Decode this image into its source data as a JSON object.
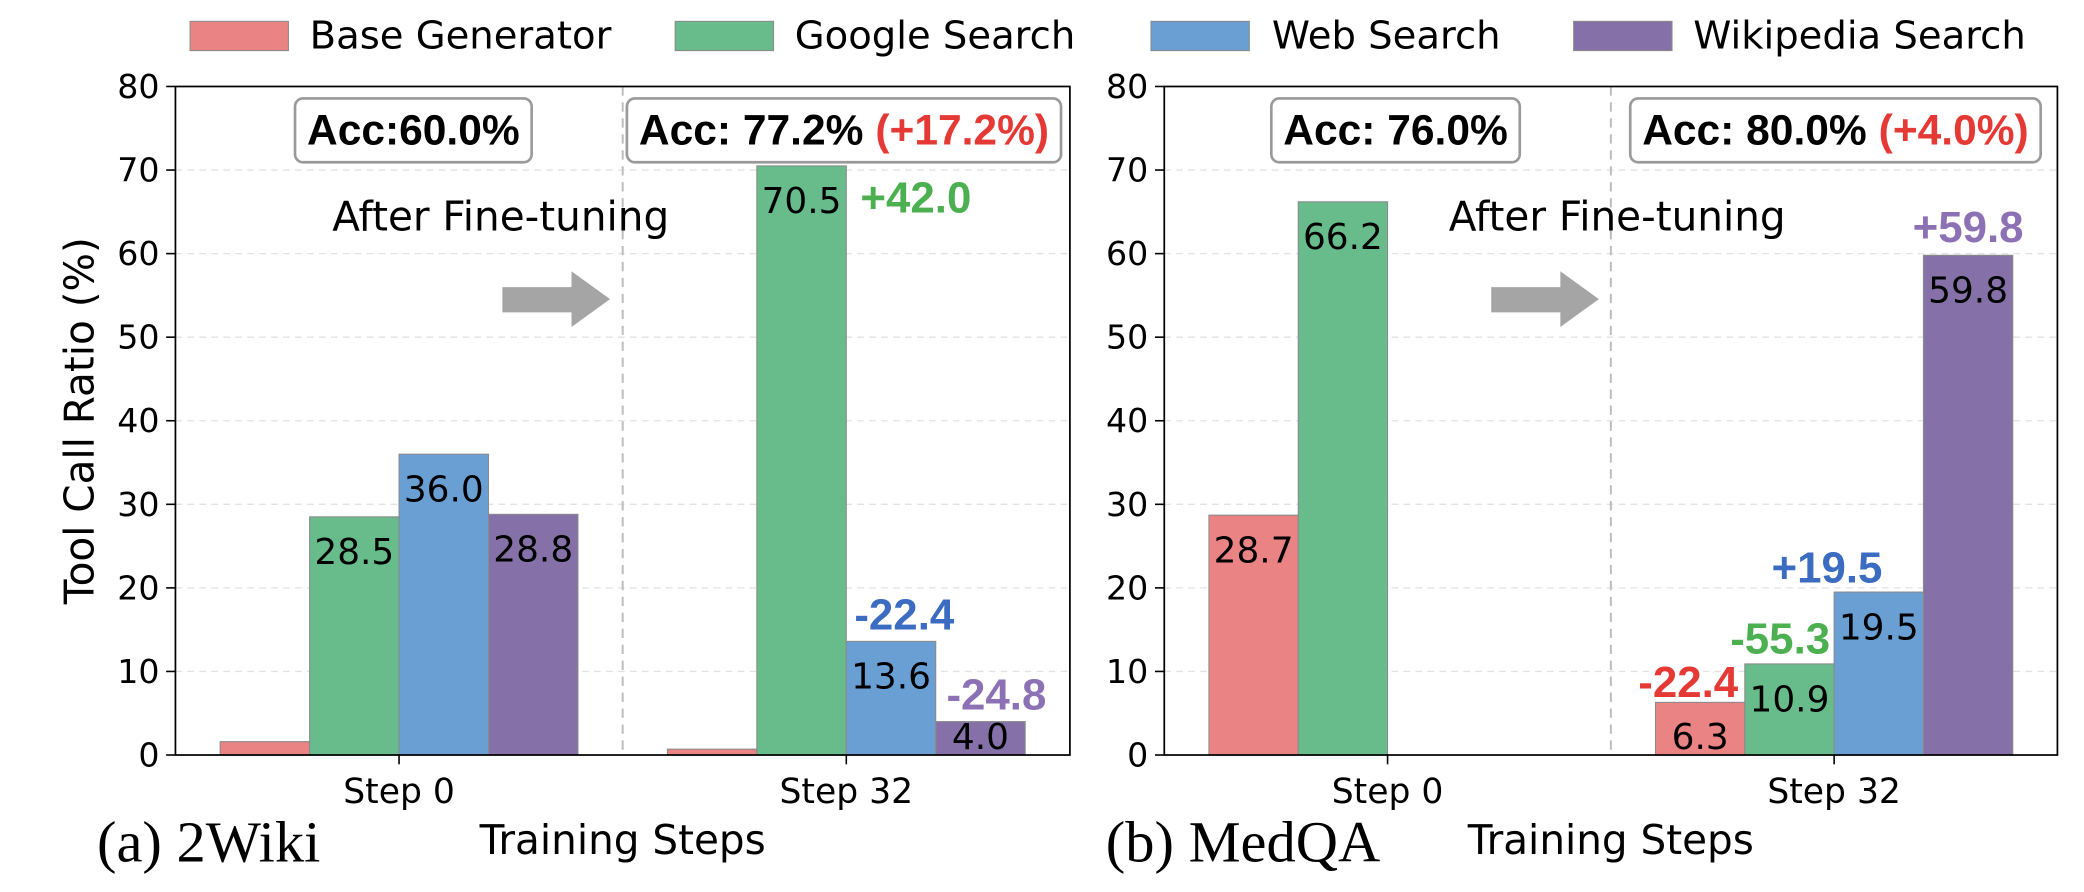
{
  "chart_data": [
    {
      "type": "bar",
      "panel_label": "(a) 2Wiki",
      "xlabel": "Training Steps",
      "ylabel": "Tool Call Ratio (%)",
      "ylim": [
        0,
        80
      ],
      "yticks": [
        0,
        10,
        20,
        30,
        40,
        50,
        60,
        70,
        80
      ],
      "categories": [
        "Step 0",
        "Step 32"
      ],
      "grid": "horizontal dashed",
      "legend": "top",
      "series": [
        {
          "name": "Base Generator",
          "color": "#EA8383",
          "values": [
            1.6,
            0.7
          ],
          "value_labels": [
            null,
            null
          ],
          "change_label": null
        },
        {
          "name": "Google Search",
          "color": "#68BB8A",
          "values": [
            28.5,
            70.5
          ],
          "value_labels": [
            "28.5",
            "70.5"
          ],
          "change_label": "+42.0",
          "change_color": "#4CAF50"
        },
        {
          "name": "Web Search",
          "color": "#6A9FD4",
          "values": [
            36.0,
            13.6
          ],
          "value_labels": [
            "36.0",
            "13.6"
          ],
          "change_label": "-22.4",
          "change_color": "#3B6CC1"
        },
        {
          "name": "Wikipedia Search",
          "color": "#8571A8",
          "values": [
            28.8,
            4.0
          ],
          "value_labels": [
            "28.8",
            "4.0"
          ],
          "change_label": "-24.8",
          "change_color": "#8D71B5"
        }
      ],
      "accuracy": [
        {
          "text": "Acc:60.0%",
          "delta": null
        },
        {
          "text": "Acc: 77.2%",
          "delta": "(+17.2%)",
          "delta_color": "#E53935"
        }
      ],
      "annotation": "After Fine-tuning"
    },
    {
      "type": "bar",
      "panel_label": "(b) MedQA",
      "xlabel": "Training Steps",
      "ylabel": "",
      "ylim": [
        0,
        80
      ],
      "yticks": [
        0,
        10,
        20,
        30,
        40,
        50,
        60,
        70,
        80
      ],
      "categories": [
        "Step 0",
        "Step 32"
      ],
      "grid": "horizontal dashed",
      "legend": "top",
      "series": [
        {
          "name": "Base Generator",
          "color": "#EA8383",
          "values": [
            28.7,
            6.3
          ],
          "value_labels": [
            "28.7",
            "6.3"
          ],
          "change_label": "-22.4",
          "change_color": "#E53935"
        },
        {
          "name": "Google Search",
          "color": "#68BB8A",
          "values": [
            66.2,
            10.9
          ],
          "value_labels": [
            "66.2",
            "10.9"
          ],
          "change_label": "-55.3",
          "change_color": "#4CAF50"
        },
        {
          "name": "Web Search",
          "color": "#6A9FD4",
          "values": [
            0,
            19.5
          ],
          "value_labels": [
            null,
            "19.5"
          ],
          "change_label": "+19.5",
          "change_color": "#3B6CC1"
        },
        {
          "name": "Wikipedia Search",
          "color": "#8571A8",
          "values": [
            0,
            59.8
          ],
          "value_labels": [
            null,
            "59.8"
          ],
          "change_label": "+59.8",
          "change_color": "#8D71B5"
        }
      ],
      "accuracy": [
        {
          "text": "Acc: 76.0%",
          "delta": null
        },
        {
          "text": "Acc: 80.0%",
          "delta": "(+4.0%)",
          "delta_color": "#E53935"
        }
      ],
      "annotation": "After Fine-tuning"
    }
  ]
}
